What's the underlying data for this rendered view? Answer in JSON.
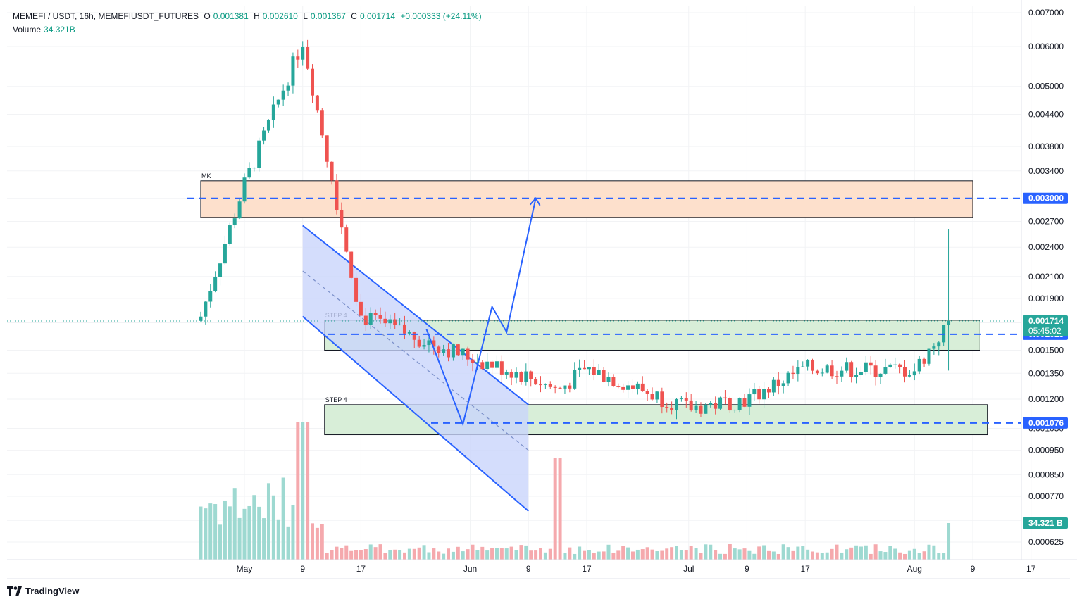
{
  "header": {
    "symbol": "MEMEFI / USDT, 16h, MEMEFIUSDT_FUTURES",
    "o_label": "O",
    "o_value": "0.001381",
    "h_label": "H",
    "h_value": "0.002610",
    "l_label": "L",
    "l_value": "0.001367",
    "c_label": "C",
    "c_value": "0.001714",
    "change": "+0.000333 (+24.11%)",
    "volume_label": "Volume",
    "volume_value": "34.321B"
  },
  "branding": {
    "name": "TradingView"
  },
  "colors": {
    "up": "#26a69a",
    "down": "#ef5350",
    "up_vol": "#9ed9d1",
    "down_vol": "#f5a9ad",
    "line_blue": "#2962ff",
    "channel_fill": "#c9d5fb",
    "zone_green": "#d8eed8",
    "zone_orange": "#fde0cc"
  },
  "chart_data": {
    "type": "candlestick",
    "y_scale": "log",
    "ylim": [
      0.00057,
      0.0072
    ],
    "y_ticks": [
      "0.007000",
      "0.006000",
      "0.005000",
      "0.004400",
      "0.003800",
      "0.003400",
      "0.003000",
      "0.002700",
      "0.002400",
      "0.002100",
      "0.001900",
      "0.001700",
      "0.001500",
      "0.001350",
      "0.001200",
      "0.001050",
      "0.000950",
      "0.000850",
      "0.000770",
      "0.000690",
      "0.000625"
    ],
    "x_tick_labels": [
      "May",
      "9",
      "17",
      "Jun",
      "9",
      "17",
      "Jul",
      "9",
      "17",
      "Aug",
      "9",
      "17"
    ],
    "x_tick_dates": [
      "2024-05-01",
      "2024-05-09",
      "2024-05-17",
      "2024-06-01",
      "2024-06-09",
      "2024-06-17",
      "2024-07-01",
      "2024-07-09",
      "2024-07-17",
      "2024-08-01",
      "2024-08-09",
      "2024-08-17"
    ],
    "candles_anchor_dates": [
      "2024-04-25",
      "2024-05-01",
      "2024-05-09",
      "2024-05-17",
      "2024-06-01",
      "2024-06-09",
      "2024-06-13",
      "2024-06-17",
      "2024-07-01",
      "2024-07-09",
      "2024-07-17",
      "2024-08-01",
      "2024-08-06"
    ],
    "candles_anchor_close": [
      0.00175,
      0.0032,
      0.00615,
      0.00175,
      0.00145,
      0.00133,
      0.00125,
      0.00138,
      0.00115,
      0.0012,
      0.00138,
      0.00137,
      0.001714
    ],
    "last_price": "0.001714",
    "countdown": "05:45:02",
    "price_tags": [
      {
        "value": "0.003000",
        "style": "line"
      },
      {
        "value": "0.001613",
        "style": "line"
      },
      {
        "value": "0.001076",
        "style": "line"
      }
    ],
    "volume_tag": "34.321 B",
    "zones": [
      {
        "label": "MK",
        "from": "2024-04-25",
        "to": "2024-08-09",
        "low": 0.00275,
        "high": 0.00325,
        "color": "orange"
      },
      {
        "label": "STEP 4",
        "from": "2024-05-12",
        "to": "2024-08-10",
        "low": 0.0015,
        "high": 0.00172,
        "color": "green"
      },
      {
        "label": "STEP 4",
        "from": "2024-05-12",
        "to": "2024-08-11",
        "low": 0.00102,
        "high": 0.00117,
        "color": "green"
      }
    ],
    "volume_peaks": [
      {
        "date": "2024-05-09",
        "value": "high"
      },
      {
        "date": "2024-06-13",
        "value": "high"
      },
      {
        "date": "2024-08-06",
        "value": "34.321B"
      }
    ]
  }
}
